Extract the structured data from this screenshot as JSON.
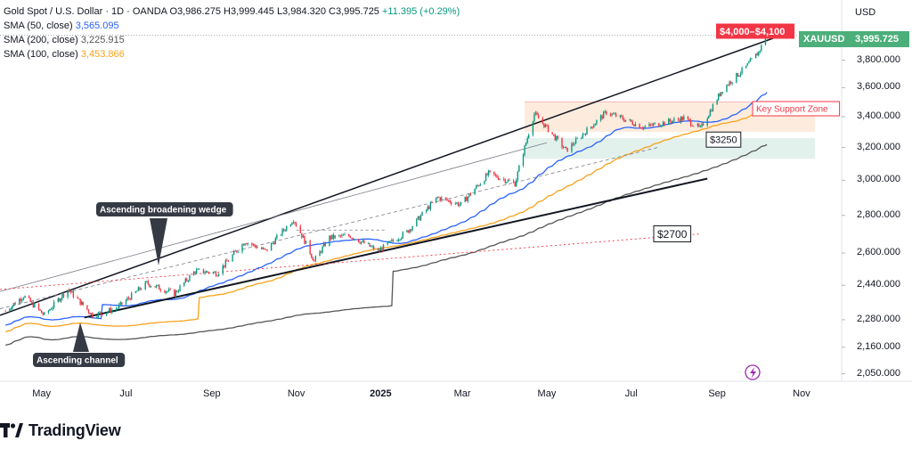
{
  "legend": {
    "title": "Gold Spot / U.S. Dollar · 1D · OANDA",
    "ohlc": "O3,986.275  H3,999.445  L3,984.320  C3,995.725",
    "change": "+11.395 (+0.29%)",
    "sma50_label": "SMA (50, close)",
    "sma50_value": "3,565.095",
    "sma200_label": "SMA (200, close)",
    "sma200_value": "3,225.915",
    "sma100_label": "SMA (100, close)",
    "sma100_value": "3,453.866"
  },
  "axis": {
    "currency": "USD",
    "symbol": "XAUUSD",
    "last_price": "3,995.725",
    "y_ticks": [
      "3,800.000",
      "3,600.000",
      "3,400.000",
      "3,200.000",
      "3,000.000",
      "2,800.000",
      "2,600.000",
      "2,440.000",
      "2,280.000",
      "2,160.000",
      "2,050.000"
    ],
    "x_ticks": [
      "May",
      "Jul",
      "Sep",
      "Nov",
      "2025",
      "Mar",
      "May",
      "Jul",
      "Sep",
      "Nov"
    ]
  },
  "brand": {
    "name": "TradingView"
  },
  "colors": {
    "up": "#089981",
    "down": "#f23645",
    "sma50": "#2962ff",
    "sma100": "#f7a21b",
    "sma200": "#555555",
    "target": "#f23645",
    "tag": "#4caf7a"
  },
  "chart_data": {
    "type": "candlestick",
    "instrument": "Gold Spot / U.S. Dollar",
    "timeframe": "1D",
    "x_range": [
      "2024-04-01",
      "2025-11-30"
    ],
    "ylim": [
      2050,
      4000
    ],
    "y_scale": "log",
    "anchors": [
      [
        "2024-04-05",
        2320
      ],
      [
        "2024-04-18",
        2390
      ],
      [
        "2024-05-03",
        2300
      ],
      [
        "2024-05-20",
        2420
      ],
      [
        "2024-06-07",
        2300
      ],
      [
        "2024-06-24",
        2330
      ],
      [
        "2024-07-16",
        2450
      ],
      [
        "2024-08-05",
        2400
      ],
      [
        "2024-08-20",
        2510
      ],
      [
        "2024-09-05",
        2500
      ],
      [
        "2024-09-25",
        2660
      ],
      [
        "2024-10-10",
        2610
      ],
      [
        "2024-10-30",
        2780
      ],
      [
        "2024-11-14",
        2560
      ],
      [
        "2024-11-25",
        2680
      ],
      [
        "2024-12-10",
        2690
      ],
      [
        "2024-12-30",
        2610
      ],
      [
        "2025-01-20",
        2710
      ],
      [
        "2025-02-11",
        2900
      ],
      [
        "2025-02-28",
        2860
      ],
      [
        "2025-03-20",
        3040
      ],
      [
        "2025-04-08",
        2980
      ],
      [
        "2025-04-22",
        3420
      ],
      [
        "2025-05-15",
        3180
      ],
      [
        "2025-06-13",
        3430
      ],
      [
        "2025-07-10",
        3330
      ],
      [
        "2025-08-08",
        3390
      ],
      [
        "2025-08-20",
        3320
      ],
      [
        "2025-09-05",
        3590
      ],
      [
        "2025-09-22",
        3750
      ],
      [
        "2025-10-01",
        3860
      ],
      [
        "2025-10-07",
        3995
      ]
    ],
    "series": [
      {
        "name": "SMA (50, close)",
        "last": 3565.095
      },
      {
        "name": "SMA (100, close)",
        "last": 3453.866
      },
      {
        "name": "SMA (200, close)",
        "last": 3225.915
      }
    ],
    "annotations": [
      {
        "text": "$4,000–$4,100",
        "type": "target-label"
      },
      {
        "text": "Key Support Zone",
        "type": "zone-label",
        "range": [
          3300,
          3500
        ]
      },
      {
        "text": "$3250",
        "type": "level",
        "value": 3250
      },
      {
        "text": "$2700",
        "type": "level",
        "value": 2700
      },
      {
        "text": "Ascending broadening wedge",
        "type": "callout"
      },
      {
        "text": "Ascending channel",
        "type": "callout"
      }
    ]
  }
}
